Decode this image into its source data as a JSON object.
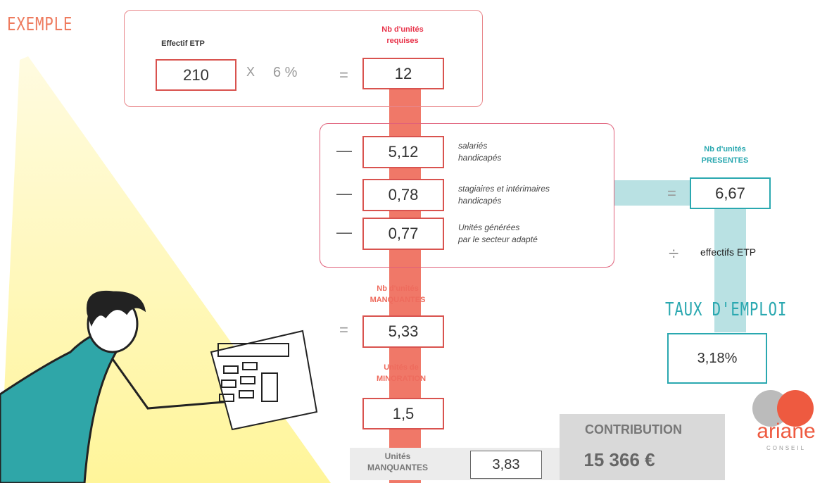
{
  "header": {
    "title": "EXEMPLE"
  },
  "required": {
    "label": "Effectif ETP",
    "headcount": "210",
    "times": "X",
    "rate": "6 %",
    "equals": "=",
    "title_lines": [
      "Nb d'unités",
      "requises"
    ],
    "value": "12"
  },
  "deductions": [
    {
      "operator": "—",
      "value": "5,12",
      "label_lines": [
        "salariés",
        "handicapés"
      ]
    },
    {
      "operator": "—",
      "value": "0,78",
      "label_lines": [
        "stagiaires et intérimaires",
        "handicapés"
      ]
    },
    {
      "operator": "—",
      "value": "0,77",
      "label_lines": [
        "Unités générées",
        "par le secteur adapté"
      ]
    }
  ],
  "present": {
    "title_lines": [
      "Nb d'unités",
      "PRESENTES"
    ],
    "equals": "=",
    "value": "6,67",
    "divide": "÷",
    "divide_label": "effectifs ETP"
  },
  "employment_rate": {
    "title": "TAUX D'EMPLOI",
    "value": "3,18%"
  },
  "missing": {
    "title_lines": [
      "Nb d'unités",
      "MANQUANTES"
    ],
    "equals": "=",
    "value": "5,33"
  },
  "reduction": {
    "title_lines": [
      "Unités de",
      "MINORATION"
    ],
    "value": "1,5"
  },
  "final_missing": {
    "label_lines": [
      "Unités",
      "MANQUANTES"
    ],
    "value": "3,83"
  },
  "contribution": {
    "title": "CONTRIBUTION",
    "value": "15 366 €"
  },
  "logo": {
    "name": "ariane",
    "subtitle": "CONSEIL"
  }
}
